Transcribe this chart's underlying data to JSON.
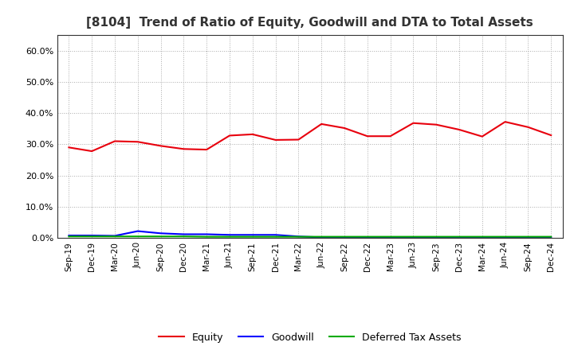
{
  "title": "[8104]  Trend of Ratio of Equity, Goodwill and DTA to Total Assets",
  "x_labels": [
    "Sep-19",
    "Dec-19",
    "Mar-20",
    "Jun-20",
    "Sep-20",
    "Dec-20",
    "Mar-21",
    "Jun-21",
    "Sep-21",
    "Dec-21",
    "Mar-22",
    "Jun-22",
    "Sep-22",
    "Dec-22",
    "Mar-23",
    "Jun-23",
    "Sep-23",
    "Dec-23",
    "Mar-24",
    "Jun-24",
    "Sep-24",
    "Dec-24"
  ],
  "equity": [
    0.29,
    0.278,
    0.31,
    0.308,
    0.295,
    0.285,
    0.283,
    0.328,
    0.332,
    0.314,
    0.315,
    0.365,
    0.352,
    0.326,
    0.326,
    0.368,
    0.363,
    0.347,
    0.325,
    0.372,
    0.355,
    0.329
  ],
  "goodwill": [
    0.008,
    0.008,
    0.007,
    0.022,
    0.015,
    0.012,
    0.012,
    0.01,
    0.01,
    0.01,
    0.005,
    0.002,
    0.002,
    0.002,
    0.002,
    0.002,
    0.002,
    0.002,
    0.002,
    0.002,
    0.002,
    0.002
  ],
  "dta": [
    0.005,
    0.005,
    0.005,
    0.005,
    0.005,
    0.005,
    0.004,
    0.004,
    0.004,
    0.004,
    0.004,
    0.004,
    0.004,
    0.004,
    0.004,
    0.004,
    0.004,
    0.004,
    0.004,
    0.004,
    0.004,
    0.004
  ],
  "equity_color": "#e8000d",
  "goodwill_color": "#0000ff",
  "dta_color": "#00aa00",
  "ylim": [
    0.0,
    0.65
  ],
  "yticks": [
    0.0,
    0.1,
    0.2,
    0.3,
    0.4,
    0.5,
    0.6
  ],
  "background_color": "#ffffff",
  "grid_color": "#aaaaaa",
  "title_fontsize": 11,
  "legend_labels": [
    "Equity",
    "Goodwill",
    "Deferred Tax Assets"
  ]
}
